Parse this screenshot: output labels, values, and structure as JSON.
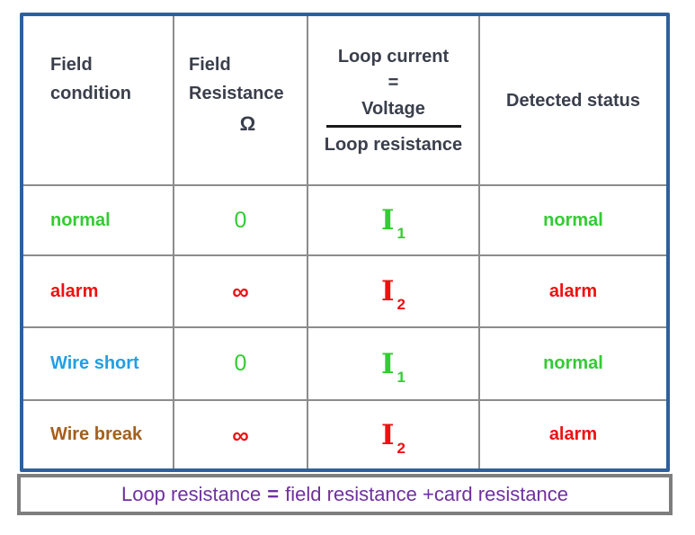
{
  "table": {
    "headers": {
      "col1": {
        "line1": "Field",
        "line2": "condition"
      },
      "col2": {
        "line1": "Field",
        "line2": "Resistance",
        "symbol": "Ω"
      },
      "col3": {
        "title": "Loop current",
        "equals": "=",
        "numerator": "Voltage",
        "denominator": "Loop resistance"
      },
      "col4": {
        "label": "Detected status"
      }
    },
    "rows": [
      {
        "condition": "normal",
        "resistance": "0",
        "current_symbol": "I",
        "current_subscript": "1",
        "status": "normal"
      },
      {
        "condition": "alarm",
        "resistance": "∞",
        "current_symbol": "I",
        "current_subscript": "2",
        "status": "alarm"
      },
      {
        "condition": "Wire short",
        "resistance": "0",
        "current_symbol": "I",
        "current_subscript": "1",
        "status": "normal"
      },
      {
        "condition": "Wire break",
        "resistance": "∞",
        "current_symbol": "I",
        "current_subscript": "2",
        "status": "alarm"
      }
    ]
  },
  "footer": {
    "prefix": "Loop resistance",
    "equals": "=",
    "suffix": "field resistance +card resistance"
  },
  "colors": {
    "outer_border": "#30609A",
    "grid_line": "#8C8C8C",
    "footer_border": "#7E7E7E",
    "header_text": "#3A3F4B",
    "normal_green": "#33CC33",
    "alarm_red": "#EE1111",
    "wire_short_blue": "#229FE3",
    "wire_break_brown": "#A4601C",
    "footer_purple": "#7030A0",
    "fraction_line": "#1A1A1A"
  }
}
